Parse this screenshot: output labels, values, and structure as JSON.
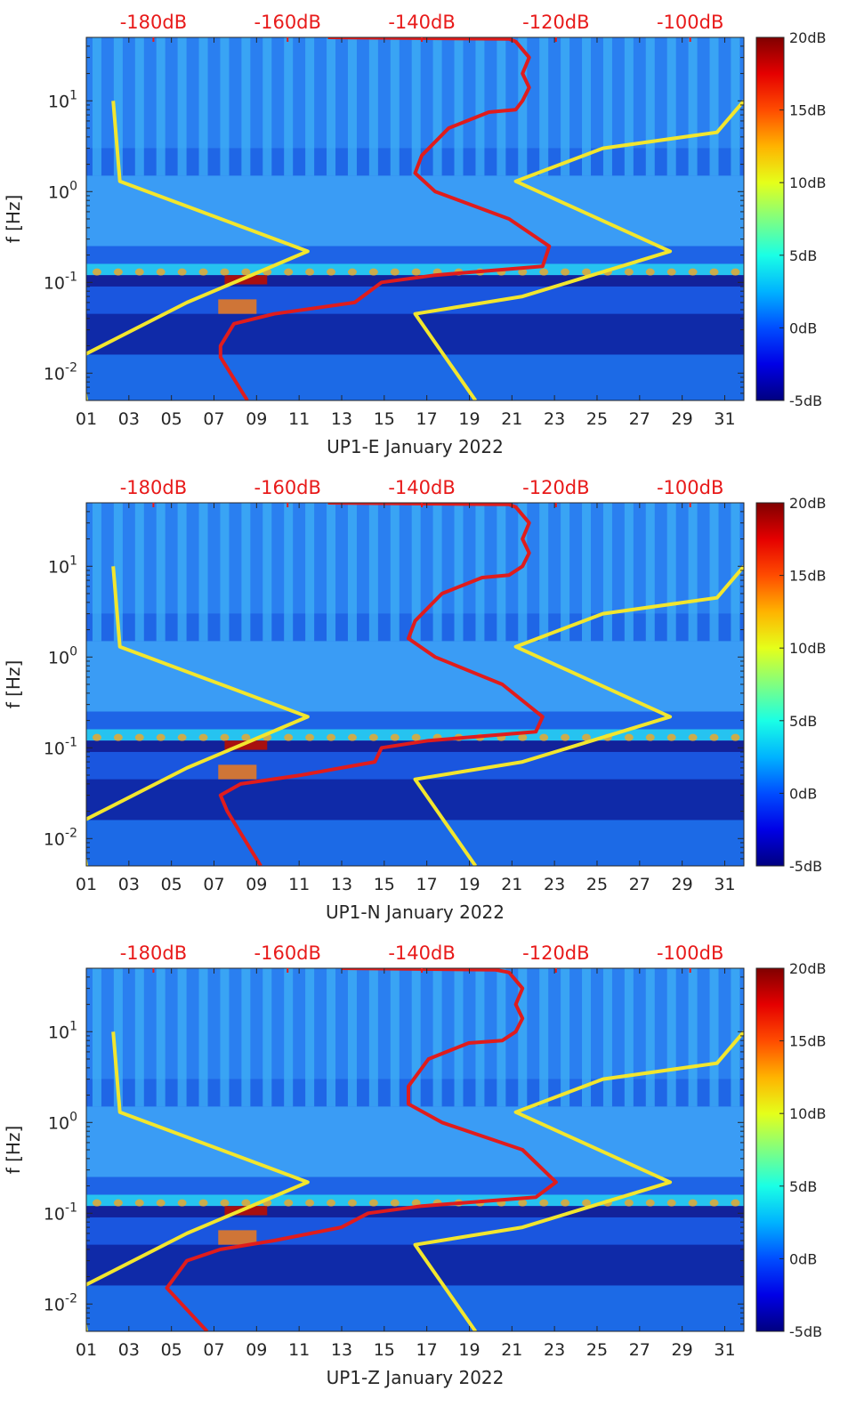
{
  "chart_data": [
    {
      "type": "heatmap",
      "title": "UP1-E January 2022",
      "xlabel": "UP1-E January 2022",
      "ylabel": "f [Hz]",
      "x_ticks": [
        "01",
        "03",
        "05",
        "07",
        "09",
        "11",
        "13",
        "15",
        "17",
        "19",
        "21",
        "23",
        "25",
        "27",
        "29",
        "31"
      ],
      "x_range_days": [
        1,
        31.9
      ],
      "y_ticks": [
        {
          "value": 0.01,
          "base": "10",
          "exp": "-2"
        },
        {
          "value": 0.1,
          "base": "10",
          "exp": "-1"
        },
        {
          "value": 1,
          "base": "10",
          "exp": "0"
        },
        {
          "value": 10,
          "base": "10",
          "exp": "1"
        }
      ],
      "y_range_hz": [
        0.005,
        50
      ],
      "y_scale": "log",
      "top_axis": {
        "labels": [
          "-180dB",
          "-160dB",
          "-140dB",
          "-120dB",
          "-100dB"
        ],
        "range_db": [
          -190,
          -92
        ]
      },
      "colorbar": {
        "labels": [
          "20dB",
          "15dB",
          "10dB",
          "5dB",
          "0dB",
          "-5dB"
        ],
        "range_db": [
          -5,
          20
        ],
        "colormap": "jet"
      },
      "series": [
        {
          "name": "noise model low (yellow)",
          "color": "#f2e62e",
          "points": [
            [
              -186,
              10
            ],
            [
              -185,
              1.3
            ],
            [
              -157,
              0.22
            ],
            [
              -175,
              0.06
            ],
            [
              -191,
              0.015
            ],
            [
              -190,
              0.005
            ]
          ]
        },
        {
          "name": "noise model high (yellow)",
          "color": "#f2e62e",
          "points": [
            [
              -92,
              10
            ],
            [
              -96,
              4.5
            ],
            [
              -113,
              3
            ],
            [
              -126,
              1.3
            ],
            [
              -103,
              0.22
            ],
            [
              -125,
              0.07
            ],
            [
              -141,
              0.045
            ],
            [
              -132,
              0.005
            ]
          ]
        },
        {
          "name": "median PSD (red)",
          "color": "#e01c1c",
          "points": [
            [
              -154,
              50
            ],
            [
              -127,
              48
            ],
            [
              -126,
              45
            ],
            [
              -124,
              30
            ],
            [
              -125,
              20
            ],
            [
              -124,
              14
            ],
            [
              -125,
              10
            ],
            [
              -126,
              8
            ],
            [
              -130,
              7.5
            ],
            [
              -136,
              5
            ],
            [
              -140,
              2.5
            ],
            [
              -141,
              1.6
            ],
            [
              -138,
              1
            ],
            [
              -127,
              0.5
            ],
            [
              -121,
              0.25
            ],
            [
              -122,
              0.15
            ],
            [
              -138,
              0.12
            ],
            [
              -146,
              0.1
            ],
            [
              -150,
              0.06
            ],
            [
              -162,
              0.045
            ],
            [
              -168,
              0.035
            ],
            [
              -170,
              0.02
            ],
            [
              -170,
              0.015
            ],
            [
              -166,
              0.005
            ]
          ]
        }
      ]
    },
    {
      "type": "heatmap",
      "title": "UP1-N January 2022",
      "xlabel": "UP1-N January 2022",
      "ylabel": "f [Hz]",
      "x_ticks": [
        "01",
        "03",
        "05",
        "07",
        "09",
        "11",
        "13",
        "15",
        "17",
        "19",
        "21",
        "23",
        "25",
        "27",
        "29",
        "31"
      ],
      "x_range_days": [
        1,
        31.9
      ],
      "y_ticks": [
        {
          "value": 0.01,
          "base": "10",
          "exp": "-2"
        },
        {
          "value": 0.1,
          "base": "10",
          "exp": "-1"
        },
        {
          "value": 1,
          "base": "10",
          "exp": "0"
        },
        {
          "value": 10,
          "base": "10",
          "exp": "1"
        }
      ],
      "y_range_hz": [
        0.005,
        50
      ],
      "y_scale": "log",
      "top_axis": {
        "labels": [
          "-180dB",
          "-160dB",
          "-140dB",
          "-120dB",
          "-100dB"
        ],
        "range_db": [
          -190,
          -92
        ]
      },
      "colorbar": {
        "labels": [
          "20dB",
          "15dB",
          "10dB",
          "5dB",
          "0dB",
          "-5dB"
        ],
        "range_db": [
          -5,
          20
        ],
        "colormap": "jet"
      },
      "series": [
        {
          "name": "noise model low (yellow)",
          "color": "#f2e62e",
          "points": [
            [
              -186,
              10
            ],
            [
              -185,
              1.3
            ],
            [
              -157,
              0.22
            ],
            [
              -175,
              0.06
            ],
            [
              -191,
              0.015
            ],
            [
              -190,
              0.005
            ]
          ]
        },
        {
          "name": "noise model high (yellow)",
          "color": "#f2e62e",
          "points": [
            [
              -92,
              10
            ],
            [
              -96,
              4.5
            ],
            [
              -113,
              3
            ],
            [
              -126,
              1.3
            ],
            [
              -103,
              0.22
            ],
            [
              -125,
              0.07
            ],
            [
              -141,
              0.045
            ],
            [
              -132,
              0.005
            ]
          ]
        },
        {
          "name": "median PSD (red)",
          "color": "#e01c1c",
          "points": [
            [
              -154,
              50
            ],
            [
              -127,
              48
            ],
            [
              -126,
              45
            ],
            [
              -124,
              30
            ],
            [
              -125,
              20
            ],
            [
              -124,
              14
            ],
            [
              -125,
              10
            ],
            [
              -127,
              8
            ],
            [
              -131,
              7.5
            ],
            [
              -137,
              5
            ],
            [
              -141,
              2.5
            ],
            [
              -142,
              1.6
            ],
            [
              -138,
              1
            ],
            [
              -128,
              0.5
            ],
            [
              -122,
              0.22
            ],
            [
              -123,
              0.15
            ],
            [
              -139,
              0.12
            ],
            [
              -146,
              0.1
            ],
            [
              -147,
              0.07
            ],
            [
              -158,
              0.05
            ],
            [
              -167,
              0.04
            ],
            [
              -170,
              0.03
            ],
            [
              -169,
              0.02
            ],
            [
              -164,
              0.005
            ]
          ]
        }
      ]
    },
    {
      "type": "heatmap",
      "title": "UP1-Z January 2022",
      "xlabel": "UP1-Z January 2022",
      "ylabel": "f [Hz]",
      "x_ticks": [
        "01",
        "03",
        "05",
        "07",
        "09",
        "11",
        "13",
        "15",
        "17",
        "19",
        "21",
        "23",
        "25",
        "27",
        "29",
        "31"
      ],
      "x_range_days": [
        1,
        31.9
      ],
      "y_ticks": [
        {
          "value": 0.01,
          "base": "10",
          "exp": "-2"
        },
        {
          "value": 0.1,
          "base": "10",
          "exp": "-1"
        },
        {
          "value": 1,
          "base": "10",
          "exp": "0"
        },
        {
          "value": 10,
          "base": "10",
          "exp": "1"
        }
      ],
      "y_range_hz": [
        0.005,
        50
      ],
      "y_scale": "log",
      "top_axis": {
        "labels": [
          "-180dB",
          "-160dB",
          "-140dB",
          "-120dB",
          "-100dB"
        ],
        "range_db": [
          -190,
          -92
        ]
      },
      "colorbar": {
        "labels": [
          "20dB",
          "15dB",
          "10dB",
          "5dB",
          "0dB",
          "-5dB"
        ],
        "range_db": [
          -5,
          20
        ],
        "colormap": "jet"
      },
      "series": [
        {
          "name": "noise model low (yellow)",
          "color": "#f2e62e",
          "points": [
            [
              -186,
              10
            ],
            [
              -185,
              1.3
            ],
            [
              -157,
              0.22
            ],
            [
              -175,
              0.06
            ],
            [
              -191,
              0.015
            ],
            [
              -190,
              0.005
            ]
          ]
        },
        {
          "name": "noise model high (yellow)",
          "color": "#f2e62e",
          "points": [
            [
              -92,
              10
            ],
            [
              -96,
              4.5
            ],
            [
              -113,
              3
            ],
            [
              -126,
              1.3
            ],
            [
              -103,
              0.22
            ],
            [
              -125,
              0.07
            ],
            [
              -141,
              0.045
            ],
            [
              -132,
              0.005
            ]
          ]
        },
        {
          "name": "median PSD (red)",
          "color": "#e01c1c",
          "points": [
            [
              -152,
              50
            ],
            [
              -129,
              48
            ],
            [
              -127,
              45
            ],
            [
              -125,
              30
            ],
            [
              -126,
              20
            ],
            [
              -125,
              14
            ],
            [
              -126,
              10
            ],
            [
              -128,
              8
            ],
            [
              -133,
              7.5
            ],
            [
              -139,
              5
            ],
            [
              -142,
              2.5
            ],
            [
              -142,
              1.6
            ],
            [
              -137,
              1
            ],
            [
              -125,
              0.5
            ],
            [
              -120,
              0.22
            ],
            [
              -123,
              0.15
            ],
            [
              -140,
              0.12
            ],
            [
              -148,
              0.1
            ],
            [
              -152,
              0.07
            ],
            [
              -162,
              0.05
            ],
            [
              -170,
              0.04
            ],
            [
              -175,
              0.03
            ],
            [
              -178,
              0.015
            ],
            [
              -172,
              0.005
            ]
          ]
        }
      ]
    }
  ]
}
